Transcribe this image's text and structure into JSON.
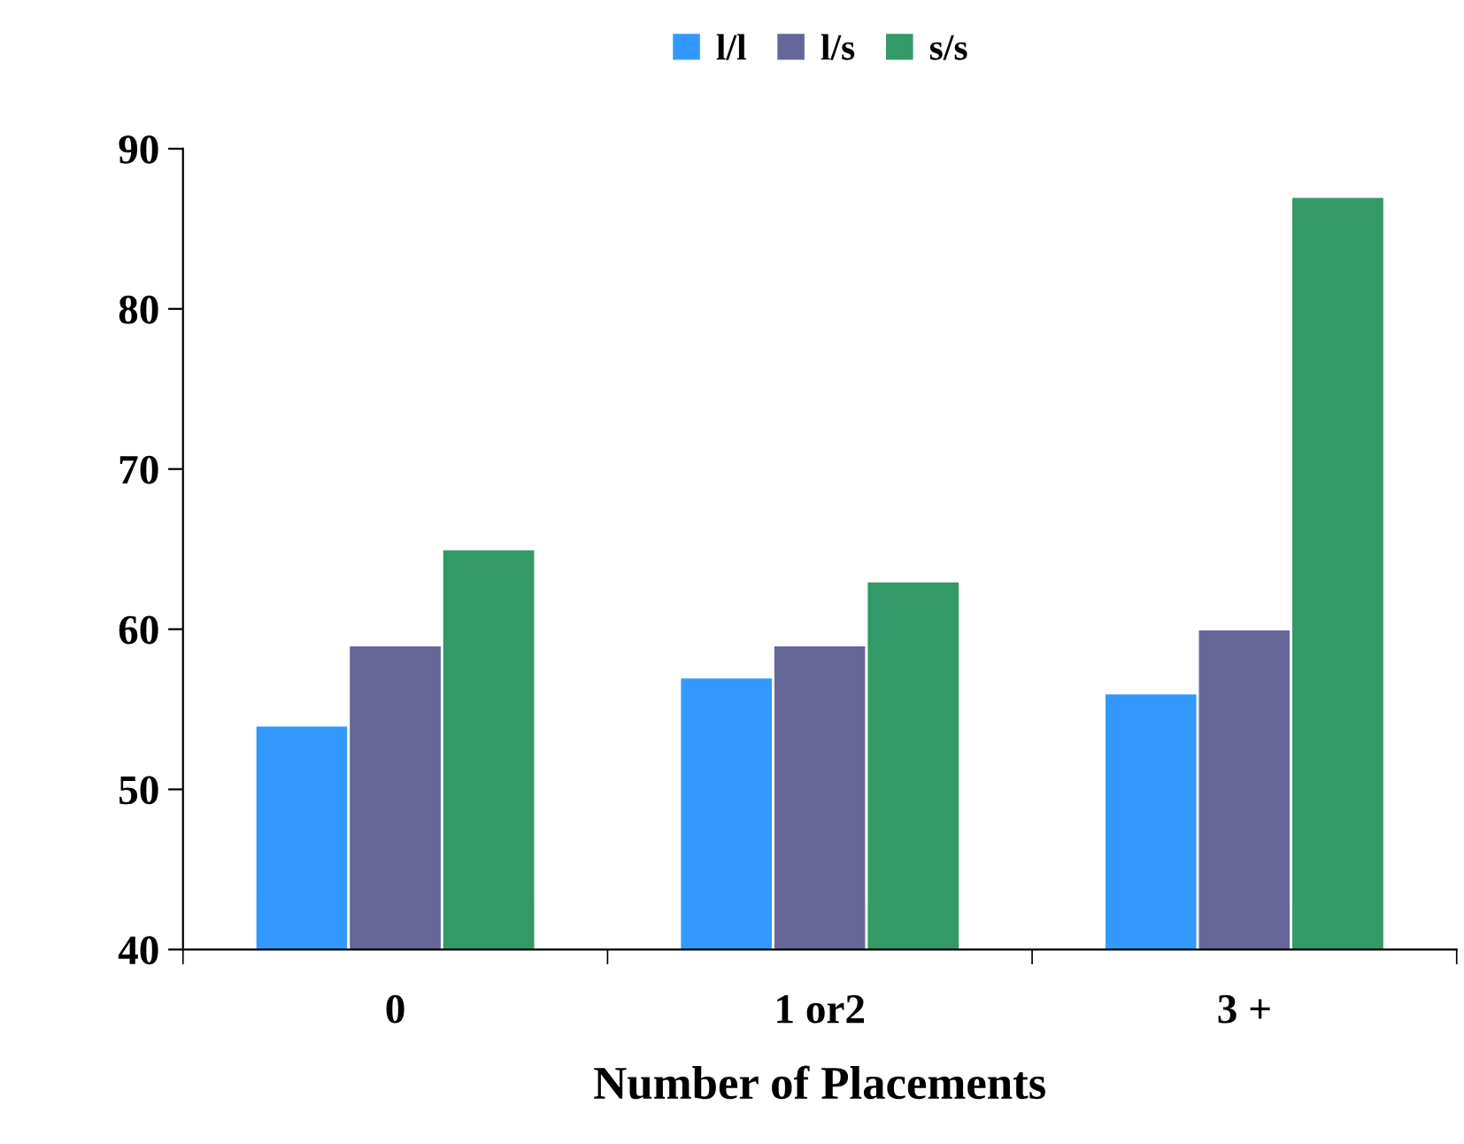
{
  "chart_data": {
    "type": "bar",
    "xlabel": "Number of Placements",
    "categories": [
      "0",
      "1 or2",
      "3 +"
    ],
    "series": [
      {
        "name": "l/l",
        "color": "#3399ff",
        "values": [
          54,
          57,
          56
        ]
      },
      {
        "name": "l/s",
        "color": "#666699",
        "values": [
          59,
          59,
          60
        ]
      },
      {
        "name": "s/s",
        "color": "#339966",
        "values": [
          65,
          63,
          87
        ]
      }
    ],
    "ylim": [
      40,
      90
    ],
    "yticks": [
      40,
      50,
      60,
      70,
      80,
      90
    ],
    "grid": false,
    "legend": "top"
  }
}
